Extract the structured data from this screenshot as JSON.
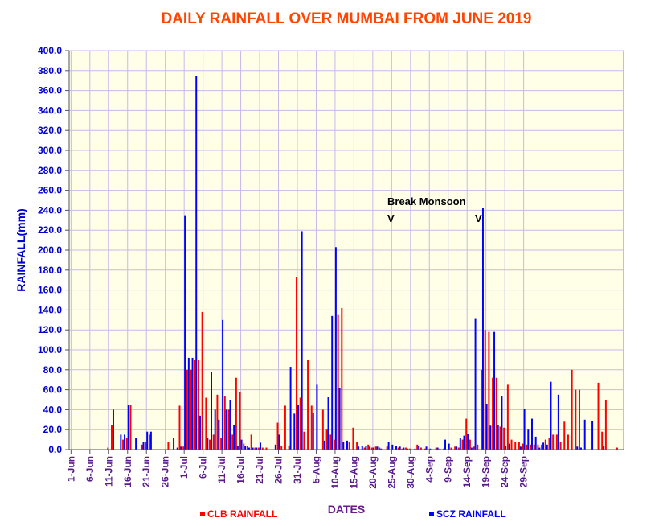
{
  "chart_data": {
    "type": "bar",
    "title": "DAILY RAINFALL OVER MUMBAI FROM JUNE 2019",
    "xlabel": "DATES",
    "ylabel": "RAINFALL(mm)",
    "ylim": [
      0,
      400
    ],
    "y_ticks": [
      "0.0",
      "20.0",
      "40.0",
      "60.0",
      "80.0",
      "100.0",
      "120.0",
      "140.0",
      "160.0",
      "180.0",
      "200.0",
      "220.0",
      "240.0",
      "260.0",
      "280.0",
      "300.0",
      "320.0",
      "340.0",
      "360.0",
      "380.0",
      "400.0"
    ],
    "x_ticks": [
      "1-Jun",
      "6-Jun",
      "11-Jun",
      "16-Jun",
      "21-Jun",
      "26-Jun",
      "1-Jul",
      "6-Jul",
      "11-Jul",
      "16-Jul",
      "21-Jul",
      "26-Jul",
      "31-Jul",
      "5-Aug",
      "10-Aug",
      "15-Aug",
      "20-Aug",
      "25-Aug",
      "30-Aug",
      "4-Sep",
      "9-Sep",
      "14-Sep",
      "19-Sep",
      "24-Sep",
      "29-Sep"
    ],
    "grid": true,
    "legend_position": "bottom",
    "annotations": [
      {
        "text": "Break Monsoon",
        "date": "Aug 10"
      },
      {
        "text": "V",
        "date": "Aug 10"
      },
      {
        "text": "V",
        "date": "Aug 31"
      }
    ],
    "colors": {
      "title": "#ff4500",
      "clb": "#ff0000",
      "scz": "#0000ff",
      "plot_bg": "#ffffe8",
      "grid": "#c8b8e8",
      "ytick": "#0000cc",
      "xtick": "#5a1a8c",
      "axis_label": "#0000cc",
      "xlabel": "#6a1a8c"
    },
    "series": [
      {
        "name": "CLB RAINFALL",
        "values": [
          0,
          0,
          0,
          0,
          0,
          0,
          0,
          0,
          0,
          0,
          2,
          25,
          0,
          0,
          10,
          12,
          45,
          0,
          0,
          5,
          8,
          15,
          0,
          0,
          0,
          0,
          8,
          0,
          0,
          44,
          3,
          80,
          80,
          90,
          90,
          138,
          52,
          10,
          15,
          55,
          12,
          54,
          40,
          15,
          72,
          58,
          6,
          4,
          15,
          2,
          2,
          2,
          2,
          0,
          0,
          27,
          4,
          44,
          4,
          0,
          173,
          52,
          18,
          90,
          44,
          0,
          0,
          40,
          20,
          15,
          10,
          135,
          142,
          0,
          8,
          22,
          8,
          0,
          2,
          5,
          2,
          3,
          2,
          0,
          3,
          0,
          0,
          2,
          1,
          2,
          1,
          0,
          5,
          2,
          1,
          0,
          0,
          2,
          1,
          1,
          0,
          2,
          3,
          2,
          10,
          31,
          10,
          3,
          5,
          80,
          120,
          118,
          72,
          72,
          23,
          22,
          65,
          10,
          8,
          8,
          6,
          5,
          5,
          5,
          5,
          5,
          10,
          12,
          15,
          15,
          8,
          28,
          15,
          80,
          60,
          60,
          0,
          0,
          0,
          0,
          67,
          18,
          50,
          0,
          0,
          2,
          0
        ],
        "color": "#ff0000"
      },
      {
        "name": "SCZ RAINFALL",
        "values": [
          0,
          0,
          0,
          0,
          0,
          0,
          0,
          0,
          0,
          0,
          0,
          40,
          0,
          15,
          15,
          45,
          0,
          12,
          0,
          8,
          18,
          18,
          0,
          0,
          0,
          0,
          0,
          12,
          2,
          3,
          235,
          92,
          92,
          375,
          34,
          0,
          12,
          78,
          40,
          30,
          130,
          40,
          50,
          25,
          4,
          10,
          4,
          2,
          2,
          2,
          7,
          0,
          0,
          0,
          5,
          15,
          0,
          0,
          83,
          36,
          45,
          219,
          0,
          0,
          37,
          65,
          0,
          9,
          53,
          134,
          203,
          62,
          8,
          9,
          0,
          0,
          3,
          4,
          4,
          3,
          2,
          3,
          1,
          0,
          8,
          5,
          4,
          3,
          2,
          1,
          0,
          1,
          4,
          0,
          3,
          1,
          0,
          2,
          0,
          10,
          6,
          0,
          3,
          12,
          14,
          16,
          2,
          131,
          0,
          242,
          46,
          24,
          118,
          25,
          54,
          4,
          6,
          0,
          0,
          3,
          41,
          20,
          31,
          13,
          2,
          7,
          5,
          68,
          0,
          55,
          0,
          0,
          0,
          0,
          3,
          2,
          30,
          0,
          29,
          0,
          0,
          4,
          0
        ],
        "color": "#0000ff"
      }
    ]
  }
}
